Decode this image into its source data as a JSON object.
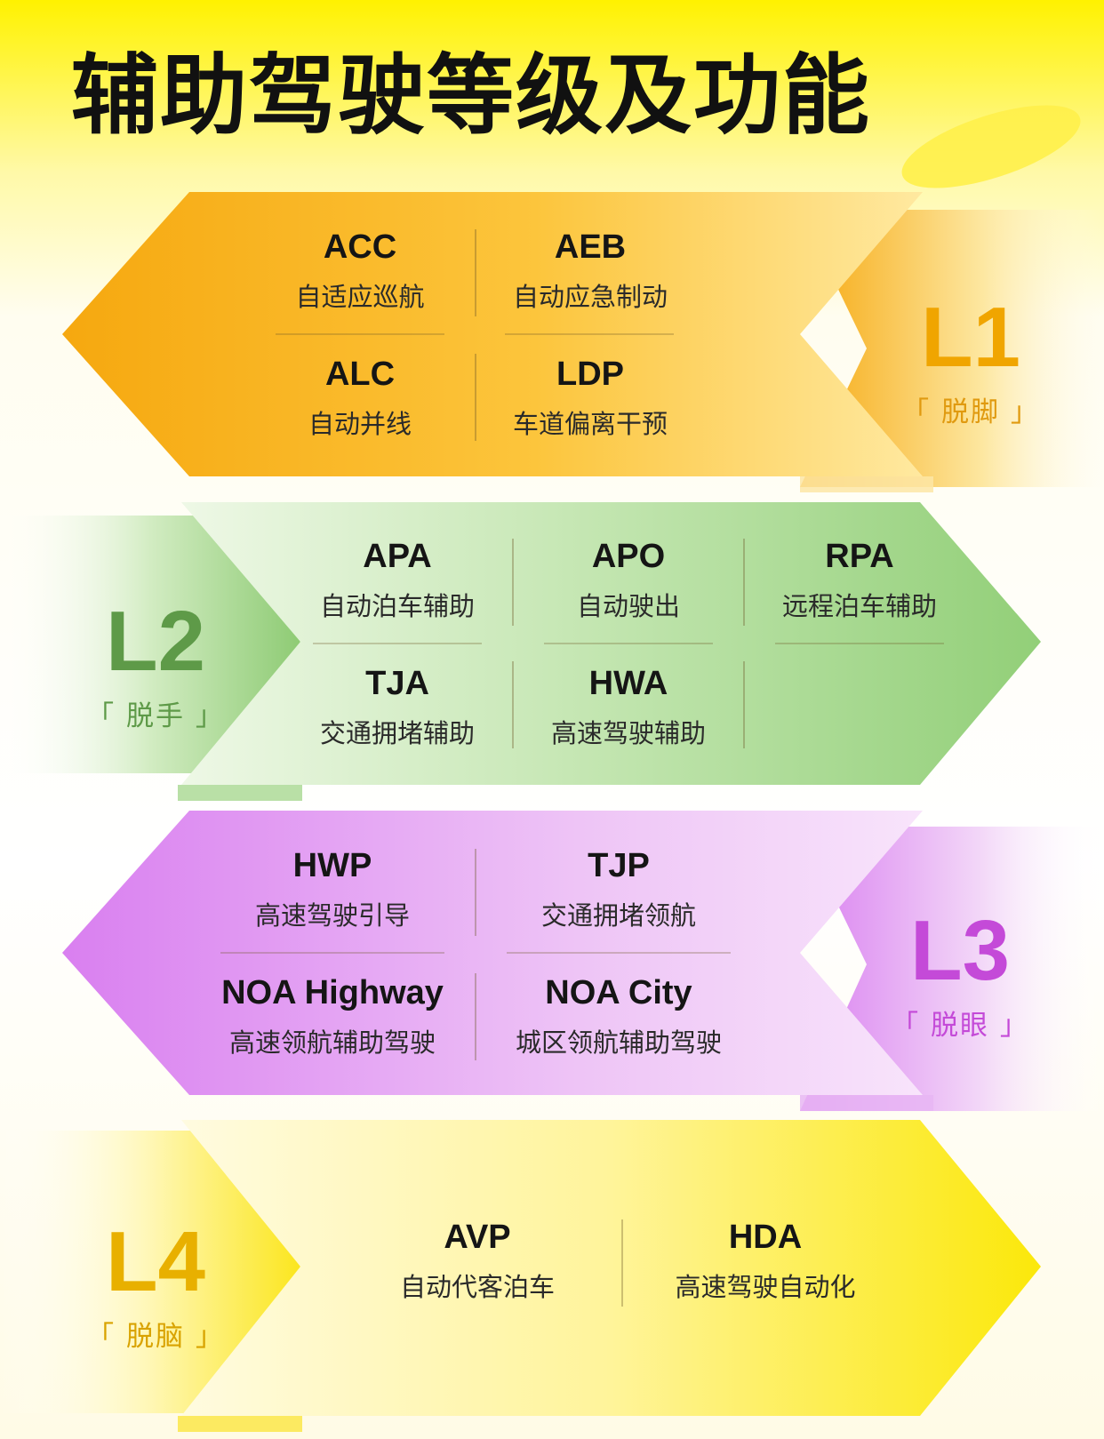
{
  "title": "辅助驾驶等级及功能",
  "levels": [
    {
      "code": "L1",
      "tag": "「 脱脚 」",
      "color": "#f0a500",
      "features": [
        {
          "abbr": "ACC",
          "cn": "自适应巡航"
        },
        {
          "abbr": "AEB",
          "cn": "自动应急制动"
        },
        {
          "abbr": "ALC",
          "cn": "自动并线"
        },
        {
          "abbr": "LDP",
          "cn": "车道偏离干预"
        }
      ]
    },
    {
      "code": "L2",
      "tag": "「 脱手 」",
      "color": "#5e9a48",
      "features": [
        {
          "abbr": "APA",
          "cn": "自动泊车辅助"
        },
        {
          "abbr": "APO",
          "cn": "自动驶出"
        },
        {
          "abbr": "RPA",
          "cn": "远程泊车辅助"
        },
        {
          "abbr": "TJA",
          "cn": "交通拥堵辅助"
        },
        {
          "abbr": "HWA",
          "cn": "高速驾驶辅助"
        }
      ]
    },
    {
      "code": "L3",
      "tag": "「 脱眼 」",
      "color": "#c44ad8",
      "features": [
        {
          "abbr": "HWP",
          "cn": "高速驾驶引导"
        },
        {
          "abbr": "TJP",
          "cn": "交通拥堵领航"
        },
        {
          "abbr": "NOA Highway",
          "cn": "高速领航辅助驾驶"
        },
        {
          "abbr": "NOA City",
          "cn": "城区领航辅助驾驶"
        }
      ]
    },
    {
      "code": "L4",
      "tag": "「 脱脑 」",
      "color": "#e8b000",
      "features": [
        {
          "abbr": "AVP",
          "cn": "自动代客泊车"
        },
        {
          "abbr": "HDA",
          "cn": "高速驾驶自动化"
        }
      ]
    }
  ]
}
